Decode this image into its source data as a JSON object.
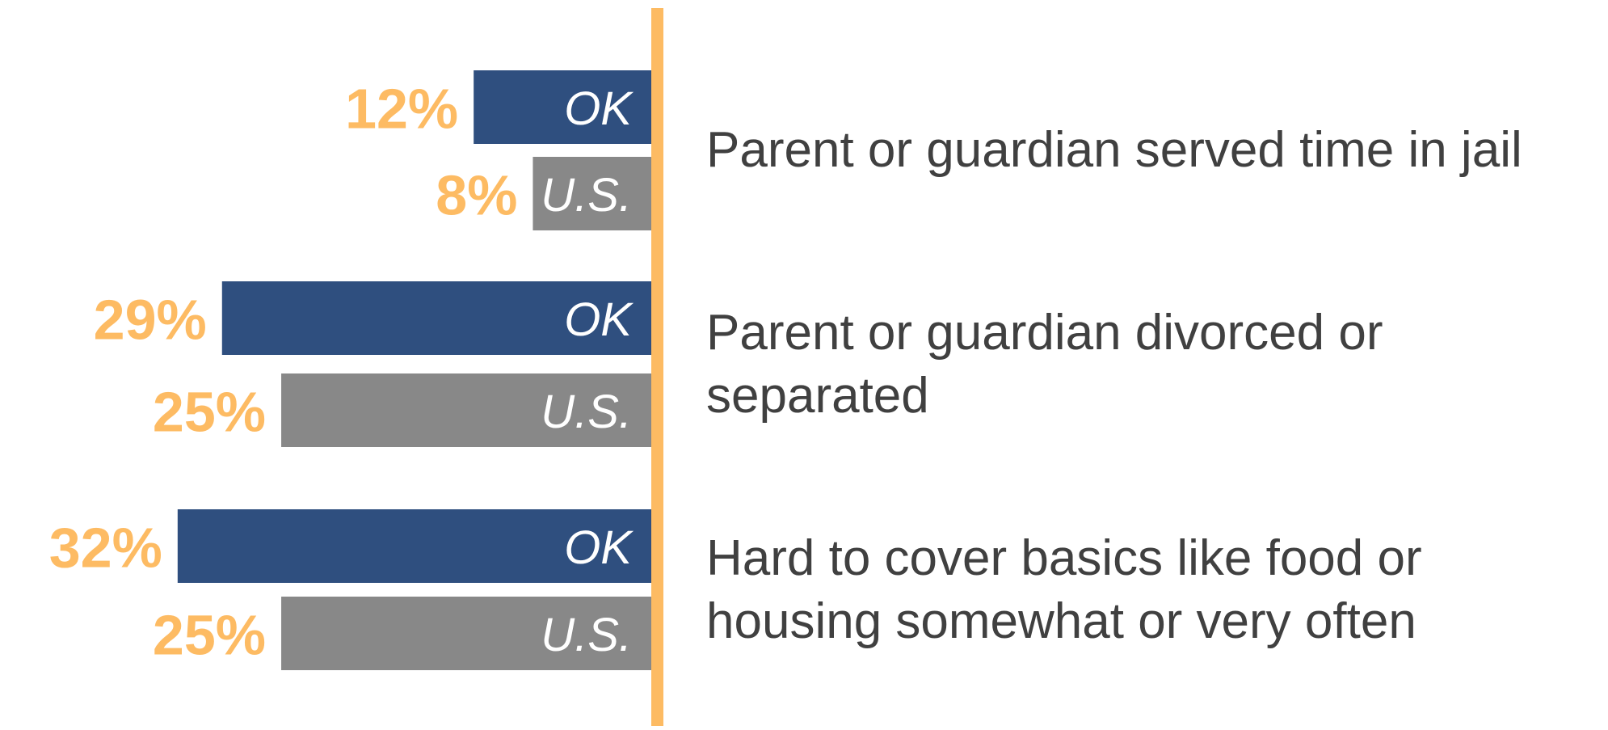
{
  "chart_data": {
    "type": "bar",
    "orientation": "horizontal",
    "direction": "leftward",
    "categories": [
      "Parent or guardian served time in jail",
      "Parent or guardian divorced or separated",
      "Hard to cover basics like food or housing somewhat or very often"
    ],
    "series": [
      {
        "name": "OK",
        "color": "#2f4f7f",
        "values": [
          12,
          29,
          32
        ],
        "value_labels": [
          "12%",
          "29%",
          "32%"
        ]
      },
      {
        "name": "U.S.",
        "color": "#888888",
        "values": [
          8,
          25,
          25
        ],
        "value_labels": [
          "8%",
          "25%",
          "25%"
        ]
      }
    ],
    "xlim": [
      0,
      44
    ],
    "axis_color": "#fdbb63",
    "label_color": "#fdbb63"
  }
}
